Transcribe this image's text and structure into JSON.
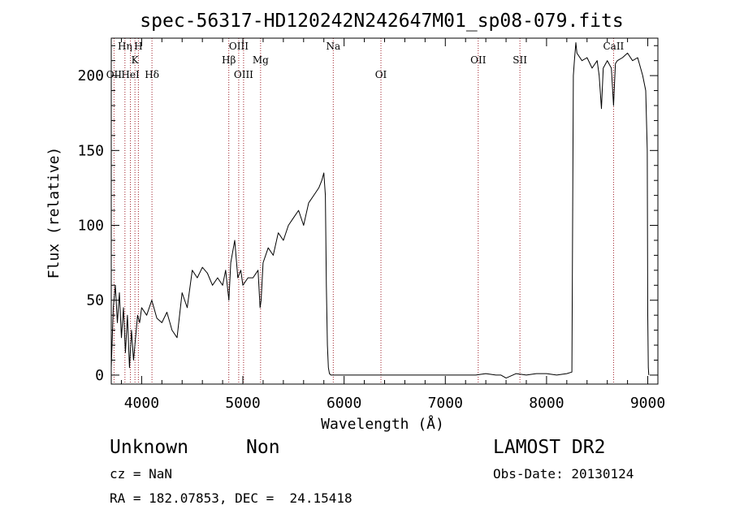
{
  "chart_data": {
    "type": "line",
    "title": "spec-56317-HD120242N242647M01_sp08-079.fits",
    "xlabel": "Wavelength (Å)",
    "ylabel": "Flux (relative)",
    "xlim": [
      3700,
      9100
    ],
    "ylim": [
      -6,
      225
    ],
    "xticks": [
      4000,
      5000,
      6000,
      7000,
      8000,
      9000
    ],
    "yticks": [
      0,
      50,
      100,
      150,
      200
    ],
    "line_color": "#000000",
    "marker_color": "#a0202a",
    "grid": false,
    "series": [
      {
        "x": [
          3700,
          3720,
          3740,
          3760,
          3780,
          3800,
          3820,
          3840,
          3860,
          3880,
          3900,
          3920,
          3940,
          3960,
          3980,
          4000,
          4050,
          4100,
          4150,
          4200,
          4250,
          4300,
          4350,
          4400,
          4450,
          4500,
          4550,
          4600,
          4650,
          4700,
          4750,
          4800,
          4830,
          4862,
          4880,
          4920,
          4950,
          4980,
          5000,
          5050,
          5100,
          5150,
          5170,
          5180,
          5200,
          5250,
          5300,
          5350,
          5400,
          5450,
          5500,
          5550,
          5600,
          5650,
          5700,
          5750,
          5780,
          5800,
          5815,
          5825,
          5835,
          5845,
          5855,
          5870,
          5900,
          6000,
          6500,
          7000,
          7200,
          7220,
          7300,
          7400,
          7500,
          7550,
          7600,
          7700,
          7800,
          7900,
          8000,
          8100,
          8200,
          8250,
          8265,
          8275,
          8290,
          8300,
          8350,
          8400,
          8450,
          8500,
          8520,
          8542,
          8560,
          8600,
          8640,
          8662,
          8680,
          8700,
          8750,
          8800,
          8850,
          8900,
          8950,
          8980,
          8995,
          9000,
          9005,
          9010
        ],
        "y": [
          5,
          45,
          60,
          35,
          55,
          25,
          45,
          15,
          40,
          5,
          30,
          10,
          25,
          40,
          35,
          45,
          40,
          50,
          38,
          35,
          42,
          30,
          25,
          55,
          45,
          70,
          65,
          72,
          68,
          60,
          65,
          60,
          70,
          50,
          75,
          90,
          65,
          70,
          60,
          65,
          65,
          70,
          45,
          50,
          75,
          85,
          80,
          95,
          90,
          100,
          105,
          110,
          100,
          115,
          120,
          125,
          130,
          135,
          120,
          60,
          20,
          5,
          1,
          0,
          0,
          0,
          0,
          0,
          0,
          0,
          0,
          1,
          0,
          0,
          -2,
          1,
          0,
          1,
          1,
          0,
          1,
          2,
          200,
          210,
          222,
          215,
          210,
          212,
          205,
          210,
          200,
          178,
          205,
          210,
          205,
          180,
          208,
          210,
          212,
          215,
          210,
          212,
          200,
          190,
          150,
          40,
          5,
          0
        ]
      }
    ],
    "markers": [
      {
        "label": "Hη",
        "x": 3835,
        "row": 1
      },
      {
        "label": "H",
        "x": 3968,
        "row": 1
      },
      {
        "label": "K",
        "x": 3934,
        "row": 2
      },
      {
        "label": "OII",
        "x": 3727,
        "row": 3
      },
      {
        "label": "HeI",
        "x": 3889,
        "row": 3
      },
      {
        "label": "Hδ",
        "x": 4102,
        "row": 3
      },
      {
        "label": "OIII",
        "x": 4959,
        "row": 1
      },
      {
        "label": "Hβ",
        "x": 4861,
        "row": 2
      },
      {
        "label": "OIII",
        "x": 5007,
        "row": 3
      },
      {
        "label": "Mg",
        "x": 5175,
        "row": 2
      },
      {
        "label": "Na",
        "x": 5893,
        "row": 1
      },
      {
        "label": "OI",
        "x": 6364,
        "row": 3
      },
      {
        "label": "OII",
        "x": 7325,
        "row": 2
      },
      {
        "label": "SII",
        "x": 7737,
        "row": 2
      },
      {
        "label": "CaII",
        "x": 8662,
        "row": 1
      }
    ]
  },
  "info": {
    "class_label": "Unknown",
    "subclass_label": "Non",
    "cz": "cz = NaN",
    "radec": "RA = 182.07853, DEC =  24.15418",
    "survey": "LAMOST DR2",
    "obs_date": "Obs-Date: 20130124"
  }
}
